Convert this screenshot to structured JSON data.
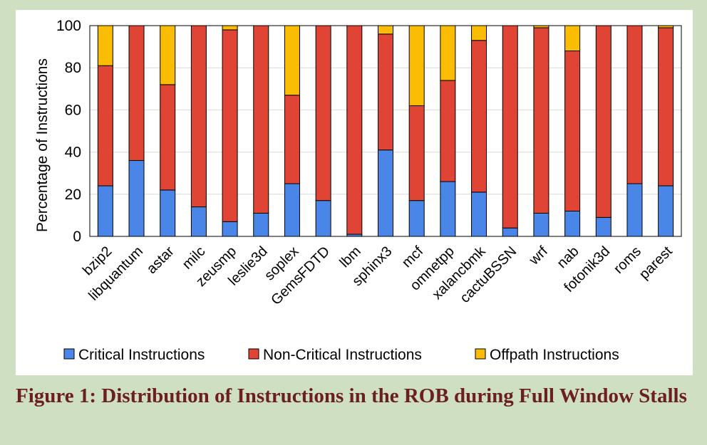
{
  "caption": "Figure 1: Distribution of Instructions in the ROB during Full Window Stalls",
  "chart_data": {
    "type": "bar",
    "stacked": true,
    "title": "",
    "xlabel": "",
    "ylabel": "Percentage of Instructions",
    "ylim": [
      0,
      100
    ],
    "yticks": [
      0,
      20,
      40,
      60,
      80,
      100
    ],
    "grid": true,
    "legend_position": "bottom",
    "categories": [
      "bzip2",
      "libquantum",
      "astar",
      "milc",
      "zeusmp",
      "leslie3d",
      "soplex",
      "GemsFDTD",
      "lbm",
      "sphinx3",
      "mcf",
      "omnetpp",
      "xalancbmk",
      "cactuBSSN",
      "wrf",
      "nab",
      "fotonik3d",
      "roms",
      "parest"
    ],
    "series": [
      {
        "name": "Critical Instructions",
        "color": "#4a86e8",
        "values": [
          24,
          36,
          22,
          14,
          7,
          11,
          25,
          17,
          1,
          41,
          17,
          26,
          21,
          4,
          11,
          12,
          9,
          25,
          24
        ]
      },
      {
        "name": "Non-Critical Instructions",
        "color": "#e04434",
        "values": [
          57,
          64,
          50,
          86,
          91,
          89,
          42,
          83,
          99,
          55,
          45,
          48,
          72,
          96,
          88,
          76,
          91,
          75,
          75
        ]
      },
      {
        "name": "Offpath Instructions",
        "color": "#fbbc04",
        "values": [
          19,
          0,
          28,
          0,
          2,
          0,
          33,
          0,
          0,
          4,
          38,
          26,
          7,
          0,
          1,
          12,
          0,
          0,
          1
        ]
      }
    ]
  }
}
